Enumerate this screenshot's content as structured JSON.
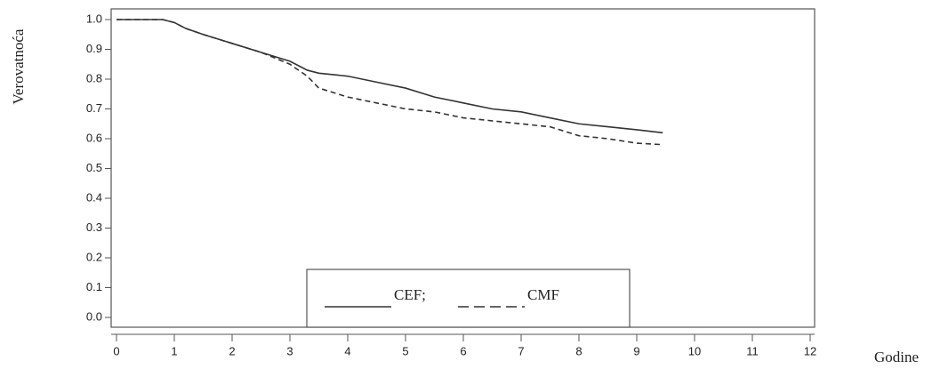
{
  "chart_data": {
    "type": "line",
    "y_label": "Verovatnoća",
    "x_label": "Godine",
    "x": [
      0,
      0.8,
      1,
      1.2,
      1.5,
      2,
      2.5,
      3,
      3.3,
      3.5,
      4,
      4.5,
      5,
      5.5,
      6,
      6.5,
      7,
      7.5,
      8,
      8.5,
      9,
      9.45
    ],
    "series": [
      {
        "name": "CEF;",
        "color": "#333333",
        "dash": false,
        "values": [
          1.0,
          1.0,
          0.99,
          0.97,
          0.95,
          0.92,
          0.89,
          0.86,
          0.83,
          0.82,
          0.81,
          0.79,
          0.77,
          0.74,
          0.72,
          0.7,
          0.69,
          0.67,
          0.65,
          0.64,
          0.63,
          0.62
        ]
      },
      {
        "name": "CMF",
        "color": "#333333",
        "dash": true,
        "values": [
          1.0,
          1.0,
          0.99,
          0.97,
          0.95,
          0.92,
          0.89,
          0.85,
          0.81,
          0.77,
          0.74,
          0.72,
          0.7,
          0.69,
          0.67,
          0.66,
          0.65,
          0.64,
          0.61,
          0.6,
          0.585,
          0.58
        ]
      }
    ],
    "xlim": [
      0,
      12
    ],
    "xticks": [
      0,
      1,
      2,
      3,
      4,
      5,
      6,
      7,
      8,
      9,
      10,
      11,
      12
    ],
    "ylim": [
      0,
      1
    ],
    "yticks": [
      {
        "value": 0,
        "label": "0.0"
      },
      0.1,
      0.2,
      0.3,
      0.4,
      0.5,
      0.6,
      0.7,
      0.8,
      0.9,
      {
        "value": 1,
        "label": "1.0"
      }
    ],
    "legend": "bottom-center"
  }
}
